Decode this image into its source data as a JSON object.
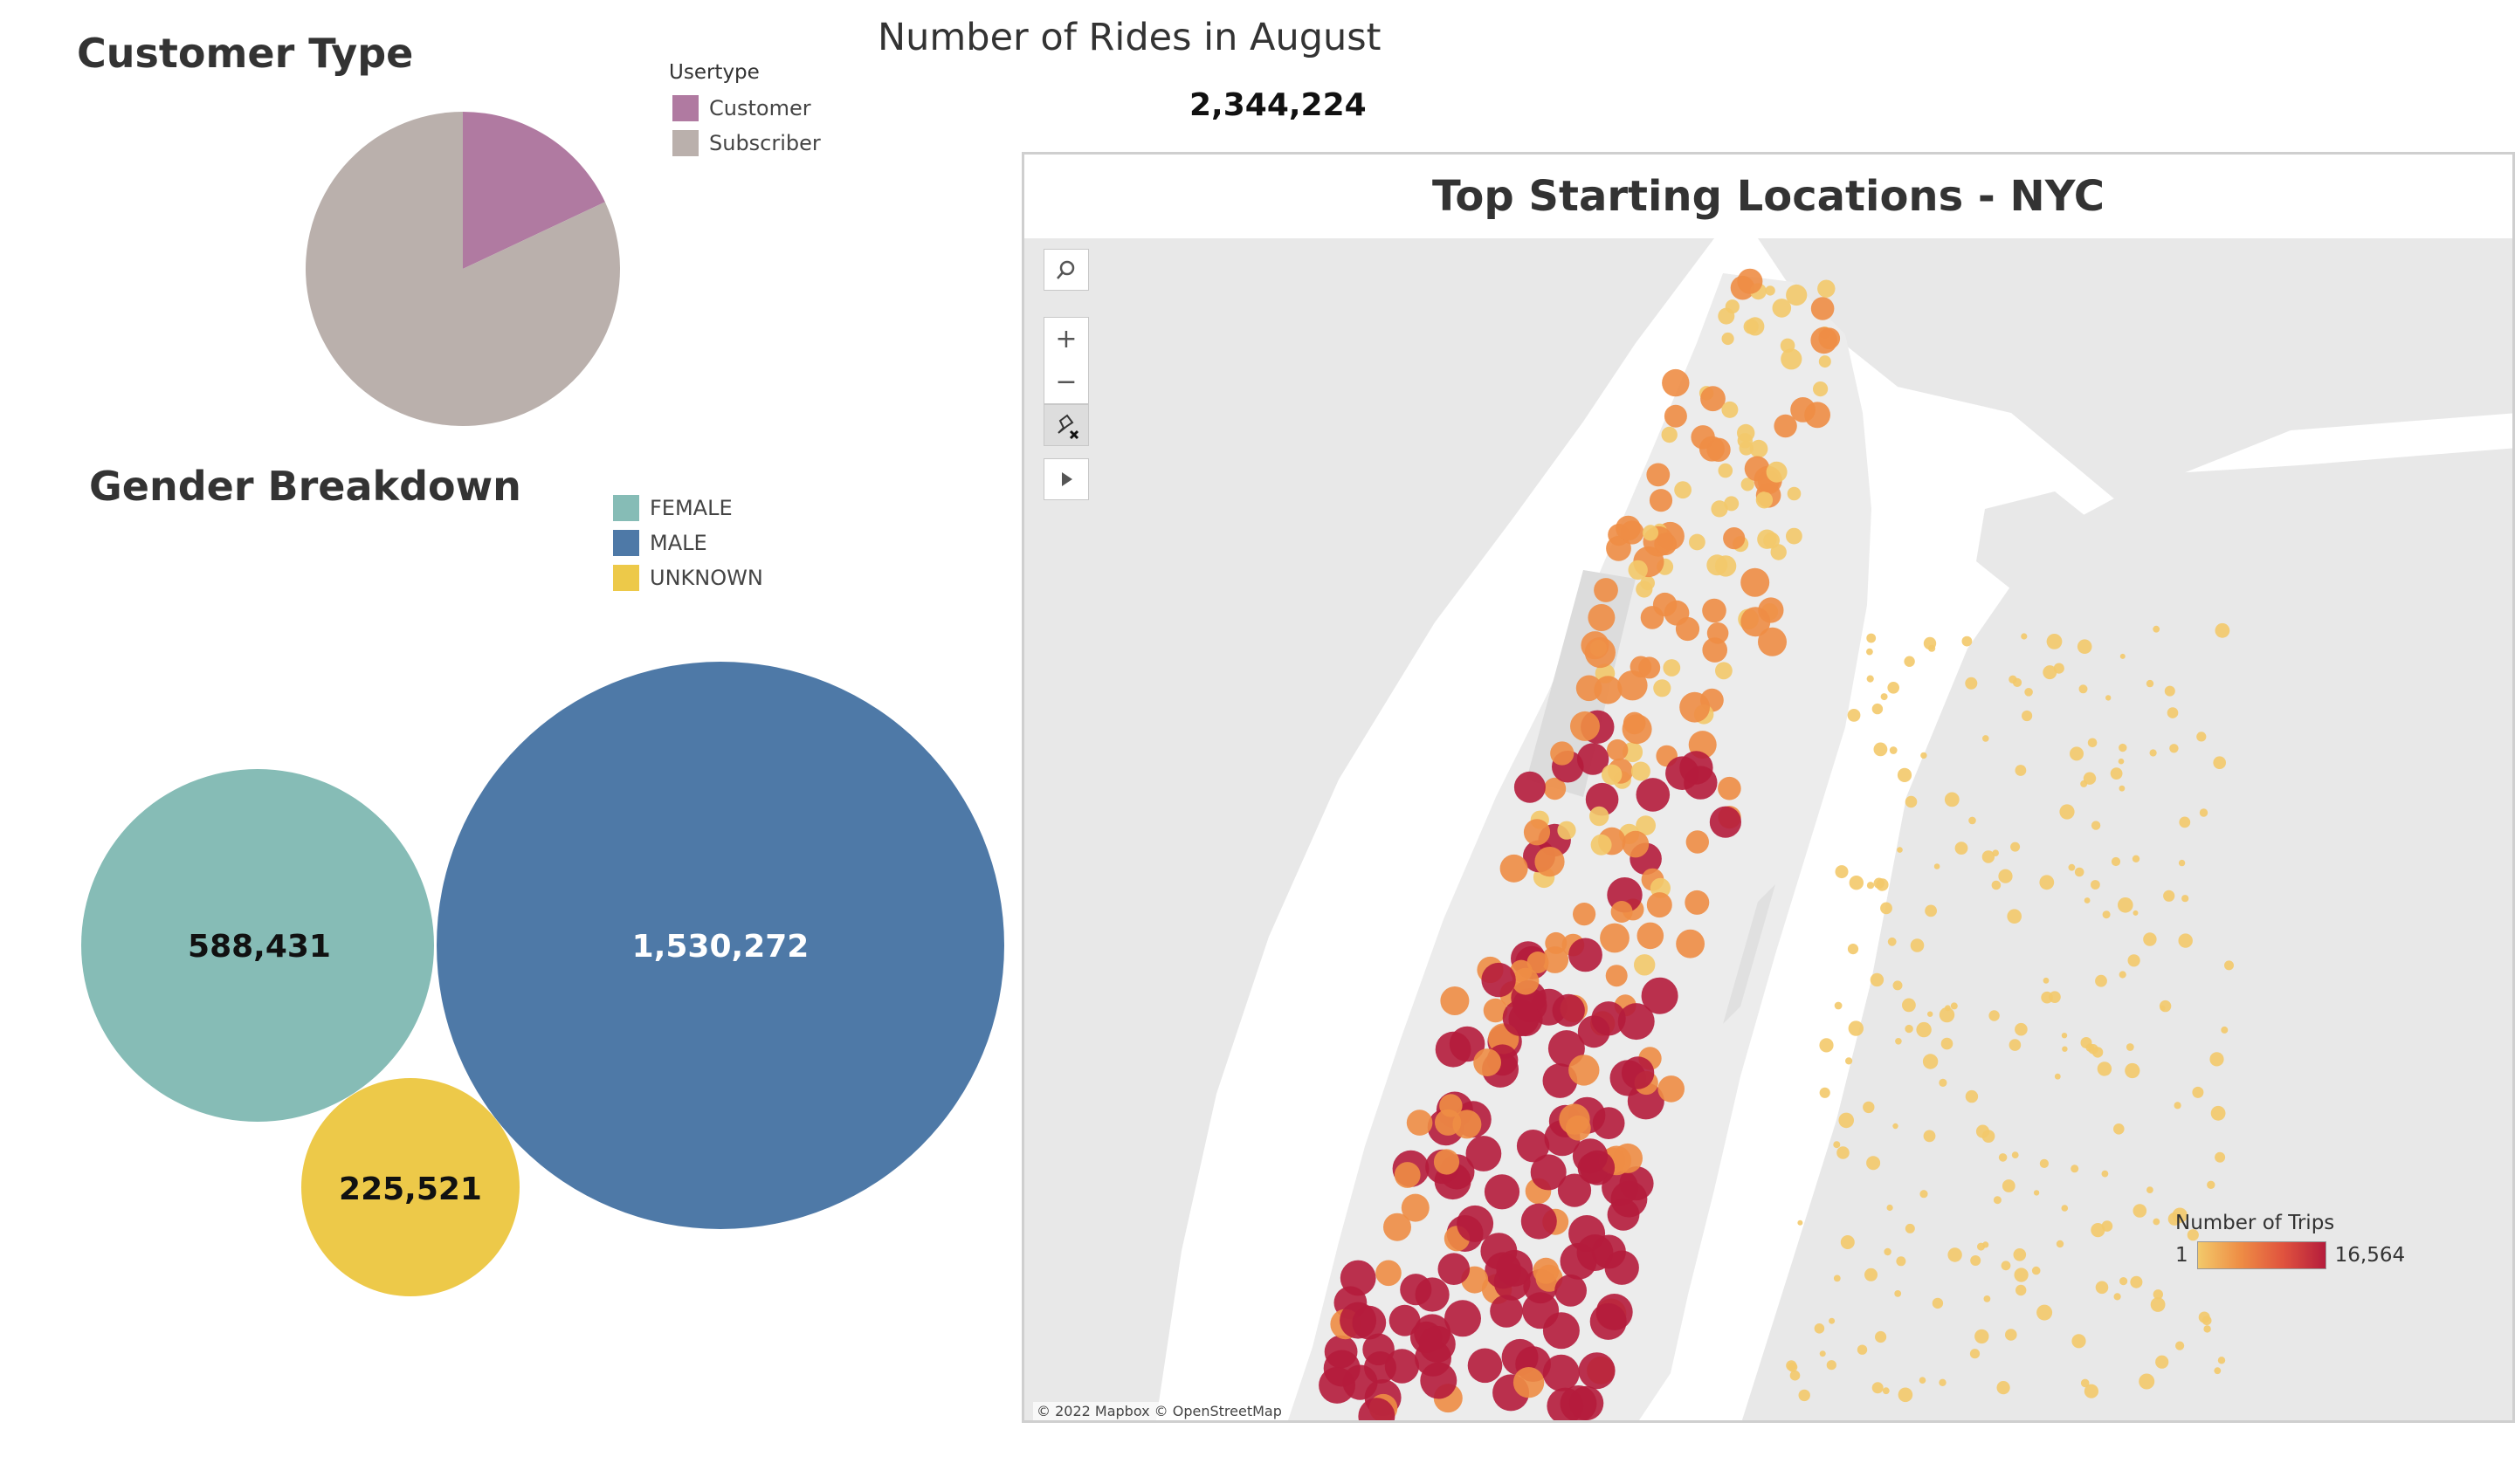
{
  "customer_type": {
    "title": "Customer Type",
    "legend_title": "Usertype",
    "legend": [
      {
        "label": "Customer",
        "color": "#b07aa1"
      },
      {
        "label": "Subscriber",
        "color": "#bab0ac"
      }
    ]
  },
  "rides": {
    "title": "Number of Rides in August",
    "value": "2,344,224"
  },
  "gender": {
    "title": "Gender Breakdown",
    "legend": [
      {
        "label": "FEMALE",
        "color": "#86bcb6"
      },
      {
        "label": "MALE",
        "color": "#4e79a7"
      },
      {
        "label": "UNKNOWN",
        "color": "#edc949"
      }
    ],
    "bubbles": [
      {
        "label": "FEMALE",
        "value": "588,431",
        "color": "#86bcb6",
        "text_color": "#111111"
      },
      {
        "label": "MALE",
        "value": "1,530,272",
        "color": "#4e79a7",
        "text_color": "#ffffff"
      },
      {
        "label": "UNKNOWN",
        "value": "225,521",
        "color": "#edc949",
        "text_color": "#111111"
      }
    ]
  },
  "map": {
    "title": "Top Starting Locations - NYC",
    "controls": [
      "search-icon",
      "zoom-in-icon",
      "zoom-out-icon",
      "pin-reset-icon",
      "play-icon"
    ],
    "legend_title": "Number of Trips",
    "legend_min": "1",
    "legend_max": "16,564",
    "attribution": "© 2022 Mapbox © OpenStreetMap",
    "colors": {
      "water": "#ffffff",
      "land": "#e8e8e8",
      "low": "#f3c96a",
      "mid": "#ee8d45",
      "high": "#b51c3c"
    }
  },
  "chart_data": [
    {
      "type": "pie",
      "title": "Customer Type",
      "legend_title": "Usertype",
      "categories": [
        "Customer",
        "Subscriber"
      ],
      "values": [
        0.18,
        0.82
      ]
    },
    {
      "type": "scatter",
      "title": "Gender Breakdown",
      "categories": [
        "FEMALE",
        "MALE",
        "UNKNOWN"
      ],
      "values": [
        588431,
        1530272,
        225521
      ]
    }
  ]
}
